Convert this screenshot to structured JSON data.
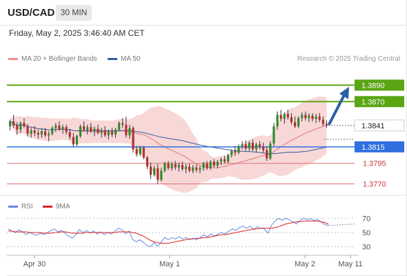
{
  "header": {
    "symbol": "USD/CAD",
    "timeframe": "30 MIN"
  },
  "datetime": "Friday, May 2, 2025 3:46:40 AM CET",
  "legend": {
    "ma20_label": "MA 20 + Bollinger Bands",
    "ma50_label": "MA 50",
    "credit": "Research © 2025 Trading Central",
    "rsi_label": "RSI",
    "rsi_ma_label": "9MA"
  },
  "colors": {
    "up_candle": "#2e8b2e",
    "down_candle": "#b03030",
    "bollinger_fill": "#f6c9c9",
    "ma20": "#e07878",
    "ma50": "#2f5f9f",
    "resistance": "#5aa514",
    "pivot": "#2f6fe0",
    "support": "#e07070",
    "arrow": "#2d5fa8",
    "rsi": "#6688dd",
    "rsi_ma": "#dd2222"
  },
  "chart_data": [
    {
      "type": "candlestick",
      "title": "",
      "y_range": [
        1.3757,
        1.3913
      ],
      "x_ticks": [
        "Apr 30",
        "May 1",
        "May 2",
        "May 11"
      ],
      "current_price": 1.3841,
      "levels": [
        {
          "label": "1.3890",
          "value": 1.389,
          "kind": "resistance"
        },
        {
          "label": "1.3870",
          "value": 1.387,
          "kind": "resistance"
        },
        {
          "label": "1.3841",
          "value": 1.3841,
          "kind": "current"
        },
        {
          "label": "1.3815",
          "value": 1.3815,
          "kind": "pivot"
        },
        {
          "label": "1.3795",
          "value": 1.3795,
          "kind": "support"
        },
        {
          "label": "1.3770",
          "value": 1.377,
          "kind": "support"
        }
      ],
      "forecast_arrow": {
        "from": 1.3843,
        "to": 1.3888
      },
      "candles": [
        [
          1.384,
          1.3848,
          1.3835,
          1.3846
        ],
        [
          1.3846,
          1.3854,
          1.3838,
          1.3841
        ],
        [
          1.3841,
          1.3845,
          1.383,
          1.3836
        ],
        [
          1.3836,
          1.3846,
          1.3832,
          1.3844
        ],
        [
          1.3844,
          1.385,
          1.3838,
          1.384
        ],
        [
          1.384,
          1.3843,
          1.3828,
          1.3831
        ],
        [
          1.3831,
          1.3838,
          1.3826,
          1.3835
        ],
        [
          1.3835,
          1.384,
          1.3828,
          1.3832
        ],
        [
          1.3832,
          1.3836,
          1.3825,
          1.383
        ],
        [
          1.383,
          1.3837,
          1.3826,
          1.3834
        ],
        [
          1.3834,
          1.3838,
          1.3827,
          1.3829
        ],
        [
          1.3829,
          1.3834,
          1.3822,
          1.3831
        ],
        [
          1.3831,
          1.384,
          1.3829,
          1.3838
        ],
        [
          1.3838,
          1.3844,
          1.3833,
          1.3841
        ],
        [
          1.3841,
          1.3846,
          1.3834,
          1.3836
        ],
        [
          1.3836,
          1.3842,
          1.3831,
          1.3839
        ],
        [
          1.3839,
          1.3842,
          1.383,
          1.3833
        ],
        [
          1.3833,
          1.3837,
          1.3824,
          1.3827
        ],
        [
          1.3827,
          1.3832,
          1.3815,
          1.3818
        ],
        [
          1.3818,
          1.383,
          1.3816,
          1.3828
        ],
        [
          1.3828,
          1.3842,
          1.3826,
          1.384
        ],
        [
          1.384,
          1.3846,
          1.3834,
          1.3836
        ],
        [
          1.3836,
          1.3842,
          1.383,
          1.3839
        ],
        [
          1.3839,
          1.3844,
          1.3832,
          1.3834
        ],
        [
          1.3834,
          1.384,
          1.3828,
          1.3837
        ],
        [
          1.3837,
          1.3842,
          1.383,
          1.3832
        ],
        [
          1.3832,
          1.3838,
          1.3826,
          1.3835
        ],
        [
          1.3835,
          1.384,
          1.3827,
          1.3829
        ],
        [
          1.3829,
          1.3836,
          1.3824,
          1.3833
        ],
        [
          1.3833,
          1.3838,
          1.3827,
          1.383
        ],
        [
          1.383,
          1.3838,
          1.3826,
          1.3836
        ],
        [
          1.3836,
          1.3846,
          1.3834,
          1.3844
        ],
        [
          1.3844,
          1.385,
          1.3838,
          1.3842
        ],
        [
          1.3842,
          1.3852,
          1.3826,
          1.3829
        ],
        [
          1.3829,
          1.3842,
          1.3825,
          1.3838
        ],
        [
          1.3838,
          1.384,
          1.3808,
          1.3812
        ],
        [
          1.3812,
          1.3816,
          1.3803,
          1.3806
        ],
        [
          1.3806,
          1.3816,
          1.3804,
          1.3814
        ],
        [
          1.3814,
          1.3816,
          1.38,
          1.3802
        ],
        [
          1.3802,
          1.3804,
          1.3788,
          1.3791
        ],
        [
          1.3791,
          1.3796,
          1.3776,
          1.3781
        ],
        [
          1.3781,
          1.3792,
          1.3779,
          1.3789
        ],
        [
          1.3789,
          1.3794,
          1.377,
          1.3775
        ],
        [
          1.3775,
          1.379,
          1.3773,
          1.3786
        ],
        [
          1.3786,
          1.3797,
          1.3784,
          1.3795
        ],
        [
          1.3795,
          1.3798,
          1.3787,
          1.3789
        ],
        [
          1.3789,
          1.3797,
          1.3786,
          1.3794
        ],
        [
          1.3794,
          1.3798,
          1.3787,
          1.379
        ],
        [
          1.379,
          1.3796,
          1.3785,
          1.3793
        ],
        [
          1.3793,
          1.3797,
          1.3786,
          1.3788
        ],
        [
          1.3788,
          1.3794,
          1.3783,
          1.3791
        ],
        [
          1.3791,
          1.3795,
          1.3784,
          1.3786
        ],
        [
          1.3786,
          1.3793,
          1.3783,
          1.379
        ],
        [
          1.379,
          1.3794,
          1.3784,
          1.3787
        ],
        [
          1.3787,
          1.3792,
          1.3783,
          1.3789
        ],
        [
          1.3789,
          1.3797,
          1.3786,
          1.3795
        ],
        [
          1.3795,
          1.3798,
          1.3787,
          1.3789
        ],
        [
          1.3789,
          1.3799,
          1.3787,
          1.3797
        ],
        [
          1.3797,
          1.38,
          1.379,
          1.3792
        ],
        [
          1.3792,
          1.3799,
          1.3789,
          1.3797
        ],
        [
          1.3797,
          1.3802,
          1.3793,
          1.38
        ],
        [
          1.38,
          1.3804,
          1.3795,
          1.3797
        ],
        [
          1.3797,
          1.3807,
          1.3795,
          1.3805
        ],
        [
          1.3805,
          1.3812,
          1.3802,
          1.381
        ],
        [
          1.381,
          1.3816,
          1.3804,
          1.3808
        ],
        [
          1.3808,
          1.3818,
          1.3806,
          1.3816
        ],
        [
          1.3816,
          1.3822,
          1.3812,
          1.3818
        ],
        [
          1.3818,
          1.3823,
          1.381,
          1.3813
        ],
        [
          1.3813,
          1.3822,
          1.381,
          1.382
        ],
        [
          1.382,
          1.3824,
          1.381,
          1.3812
        ],
        [
          1.3812,
          1.382,
          1.3808,
          1.3818
        ],
        [
          1.3818,
          1.3822,
          1.3812,
          1.3815
        ],
        [
          1.3815,
          1.382,
          1.3808,
          1.3811
        ],
        [
          1.3811,
          1.3815,
          1.3798,
          1.3801
        ],
        [
          1.3801,
          1.3822,
          1.3799,
          1.3819
        ],
        [
          1.3819,
          1.3844,
          1.3816,
          1.384
        ],
        [
          1.384,
          1.3858,
          1.3836,
          1.3854
        ],
        [
          1.3854,
          1.386,
          1.3846,
          1.3849
        ],
        [
          1.3849,
          1.3857,
          1.3843,
          1.3855
        ],
        [
          1.3855,
          1.386,
          1.3848,
          1.3851
        ],
        [
          1.3851,
          1.3856,
          1.3842,
          1.3845
        ],
        [
          1.3845,
          1.3852,
          1.3838,
          1.384
        ],
        [
          1.384,
          1.3852,
          1.3838,
          1.385
        ],
        [
          1.385,
          1.3857,
          1.3846,
          1.3854
        ],
        [
          1.3854,
          1.3858,
          1.3847,
          1.385
        ],
        [
          1.385,
          1.3856,
          1.3845,
          1.3853
        ],
        [
          1.3853,
          1.3856,
          1.3846,
          1.3849
        ],
        [
          1.3849,
          1.3855,
          1.3844,
          1.3852
        ],
        [
          1.3852,
          1.3856,
          1.3845,
          1.3848
        ],
        [
          1.3848,
          1.3852,
          1.384,
          1.3843
        ],
        [
          1.3843,
          1.3847,
          1.3838,
          1.3841
        ]
      ]
    },
    {
      "type": "line",
      "title": "",
      "y_range": [
        22,
        78
      ],
      "y_ticks": [
        70,
        50,
        30
      ],
      "series": [
        {
          "name": "RSI",
          "values": [
            55,
            52,
            50,
            54,
            51,
            47,
            50,
            48,
            46,
            49,
            47,
            50,
            53,
            55,
            51,
            53,
            49,
            45,
            42,
            47,
            54,
            50,
            53,
            49,
            52,
            48,
            51,
            47,
            50,
            48,
            52,
            56,
            54,
            48,
            52,
            40,
            37,
            40,
            36,
            32,
            30,
            36,
            31,
            37,
            43,
            40,
            43,
            41,
            44,
            41,
            43,
            40,
            42,
            40,
            43,
            47,
            44,
            48,
            45,
            48,
            50,
            48,
            52,
            55,
            53,
            57,
            59,
            56,
            59,
            54,
            58,
            56,
            55,
            49,
            60,
            66,
            70,
            67,
            70,
            68,
            65,
            62,
            67,
            70,
            68,
            69,
            67,
            68,
            65,
            61,
            60
          ]
        },
        {
          "name": "9MA",
          "values": [
            52,
            52,
            51,
            51,
            51,
            51,
            50,
            50,
            50,
            50,
            49,
            49,
            49,
            50,
            50,
            51,
            51,
            50,
            49,
            49,
            49,
            49,
            50,
            50,
            50,
            50,
            50,
            50,
            50,
            50,
            50,
            51,
            51,
            51,
            51,
            50,
            49,
            47,
            45,
            42,
            39,
            37,
            36,
            35,
            35,
            35,
            36,
            37,
            38,
            39,
            40,
            41,
            41,
            42,
            42,
            43,
            43,
            44,
            45,
            46,
            47,
            47,
            48,
            49,
            50,
            51,
            52,
            53,
            54,
            55,
            55,
            56,
            56,
            56,
            56,
            57,
            58,
            60,
            62,
            63,
            64,
            65,
            65,
            66,
            66,
            66,
            66,
            66,
            65,
            64,
            62
          ]
        }
      ]
    }
  ]
}
